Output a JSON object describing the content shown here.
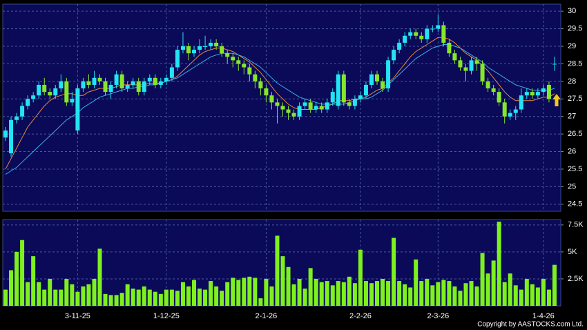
{
  "chart_data": [
    {
      "type": "candlestick",
      "open": [
        26.4,
        25.95,
        26.9,
        27.0,
        27.3,
        27.5,
        27.6,
        27.9,
        27.7,
        27.6,
        27.8,
        28.0,
        27.4,
        26.6,
        27.8,
        28.0,
        27.9,
        28.1,
        28.0,
        27.7,
        27.9,
        28.2,
        27.8,
        27.9,
        28.0,
        27.7,
        28.0,
        28.1,
        27.9,
        28.0,
        28.1,
        28.4,
        28.9,
        29.0,
        28.8,
        28.9,
        29.0,
        29.0,
        29.1,
        29.0,
        28.8,
        28.7,
        28.6,
        28.5,
        28.4,
        28.2,
        28.0,
        27.8,
        27.6,
        27.4,
        27.3,
        27.2,
        27.1,
        27.0,
        27.3,
        27.4,
        27.2,
        27.3,
        27.2,
        27.4,
        27.3,
        28.2,
        27.4,
        27.3,
        27.5,
        27.6,
        27.9,
        28.2,
        28.0,
        27.8,
        28.6,
        28.9,
        29.1,
        29.3,
        29.4,
        29.3,
        29.2,
        29.5,
        29.5,
        29.6,
        29.1,
        28.8,
        28.6,
        28.4,
        28.3,
        28.6,
        28.5,
        28.0,
        27.8,
        27.7,
        27.4,
        27.0,
        27.1,
        27.2,
        27.6,
        27.7,
        27.6,
        27.7,
        27.9,
        28.5
      ],
      "high": [
        26.7,
        27.0,
        27.1,
        27.4,
        27.6,
        27.7,
        28.0,
        28.1,
        27.8,
        27.9,
        28.2,
        28.1,
        27.7,
        27.9,
        28.1,
        28.2,
        28.3,
        28.2,
        28.1,
        28.0,
        28.3,
        28.3,
        28.0,
        28.1,
        28.1,
        28.1,
        28.2,
        28.2,
        28.1,
        28.2,
        28.5,
        29.0,
        29.4,
        29.1,
        29.0,
        29.2,
        29.3,
        29.2,
        29.2,
        29.1,
        28.9,
        28.8,
        28.7,
        28.6,
        28.5,
        28.3,
        28.1,
        27.9,
        27.7,
        27.5,
        27.4,
        27.3,
        27.2,
        27.4,
        27.5,
        27.5,
        27.4,
        27.4,
        27.5,
        27.8,
        28.3,
        28.3,
        27.5,
        27.6,
        27.7,
        28.0,
        28.3,
        28.3,
        28.1,
        28.7,
        29.0,
        29.2,
        29.4,
        29.5,
        29.5,
        29.4,
        29.6,
        29.6,
        29.9,
        29.7,
        29.2,
        28.9,
        28.7,
        28.5,
        28.7,
        28.7,
        28.6,
        28.1,
        27.9,
        27.8,
        27.5,
        27.2,
        27.3,
        27.8,
        27.8,
        27.8,
        27.8,
        27.9,
        28.0,
        28.7
      ],
      "low": [
        26.3,
        25.85,
        26.8,
        26.9,
        27.2,
        27.4,
        27.5,
        27.6,
        27.5,
        27.5,
        27.7,
        27.3,
        27.3,
        26.5,
        27.7,
        27.8,
        27.8,
        27.9,
        27.6,
        27.5,
        27.8,
        27.7,
        27.7,
        27.8,
        27.6,
        27.6,
        27.9,
        27.8,
        27.8,
        27.9,
        28.0,
        28.3,
        28.8,
        28.6,
        28.7,
        28.8,
        28.9,
        28.9,
        28.9,
        28.7,
        28.5,
        28.4,
        28.3,
        28.2,
        28.0,
        27.8,
        27.6,
        27.4,
        27.2,
        26.8,
        27.0,
        26.9,
        26.9,
        26.9,
        27.2,
        27.1,
        27.1,
        27.1,
        27.1,
        27.3,
        27.2,
        27.3,
        27.2,
        27.2,
        27.4,
        27.5,
        27.8,
        27.9,
        27.7,
        27.7,
        28.5,
        28.8,
        29.0,
        29.2,
        29.2,
        29.1,
        29.1,
        29.4,
        29.4,
        29.0,
        28.7,
        28.5,
        28.3,
        28.0,
        28.2,
        28.3,
        27.9,
        27.7,
        27.6,
        27.3,
        26.8,
        26.9,
        26.9,
        27.1,
        27.5,
        27.5,
        27.5,
        27.6,
        27.4,
        28.3
      ],
      "close": [
        26.6,
        26.9,
        27.0,
        27.3,
        27.5,
        27.6,
        27.9,
        27.7,
        27.6,
        27.8,
        28.0,
        27.4,
        27.5,
        27.8,
        28.0,
        27.9,
        28.1,
        28.0,
        27.7,
        27.9,
        28.2,
        27.8,
        27.9,
        28.0,
        27.7,
        28.0,
        28.1,
        27.9,
        28.0,
        28.1,
        28.4,
        28.9,
        29.0,
        28.8,
        28.9,
        29.0,
        29.0,
        29.1,
        29.0,
        28.8,
        28.7,
        28.6,
        28.5,
        28.4,
        28.2,
        28.0,
        27.8,
        27.6,
        27.4,
        27.3,
        27.2,
        27.1,
        27.0,
        27.3,
        27.4,
        27.2,
        27.3,
        27.2,
        27.4,
        27.7,
        28.2,
        27.4,
        27.3,
        27.5,
        27.6,
        27.9,
        28.2,
        28.0,
        27.8,
        28.6,
        28.9,
        29.1,
        29.3,
        29.4,
        29.3,
        29.2,
        29.5,
        29.5,
        29.6,
        29.1,
        28.8,
        28.6,
        28.4,
        28.3,
        28.6,
        28.5,
        28.0,
        27.8,
        27.7,
        27.4,
        27.0,
        27.1,
        27.2,
        27.6,
        27.7,
        27.6,
        27.7,
        27.8,
        27.5,
        28.5
      ],
      "up_color": "#22e4f2",
      "down_color": "#86e62a",
      "series": [
        {
          "color": "#e8893c",
          "values": [
            25.5,
            25.8,
            26.1,
            26.4,
            26.7,
            26.9,
            27.1,
            27.3,
            27.45,
            27.55,
            27.6,
            27.65,
            27.65,
            27.6,
            27.6,
            27.7,
            27.75,
            27.8,
            27.8,
            27.8,
            27.85,
            27.9,
            27.9,
            27.9,
            27.9,
            27.9,
            27.95,
            27.95,
            27.95,
            28.0,
            28.05,
            28.15,
            28.3,
            28.45,
            28.6,
            28.75,
            28.85,
            28.9,
            28.95,
            28.95,
            28.9,
            28.85,
            28.75,
            28.65,
            28.55,
            28.4,
            28.25,
            28.05,
            27.85,
            27.65,
            27.5,
            27.35,
            27.25,
            27.2,
            27.2,
            27.2,
            27.2,
            27.25,
            27.3,
            27.35,
            27.45,
            27.45,
            27.45,
            27.5,
            27.5,
            27.55,
            27.65,
            27.75,
            27.8,
            27.95,
            28.1,
            28.3,
            28.5,
            28.7,
            28.85,
            28.95,
            29.05,
            29.15,
            29.25,
            29.25,
            29.2,
            29.1,
            28.95,
            28.8,
            28.7,
            28.6,
            28.45,
            28.3,
            28.1,
            27.9,
            27.7,
            27.55,
            27.45,
            27.45,
            27.45,
            27.45,
            27.5,
            27.55,
            27.55,
            27.65
          ]
        },
        {
          "color": "#3eaee6",
          "values": [
            25.35,
            25.45,
            25.55,
            25.7,
            25.85,
            26.0,
            26.15,
            26.3,
            26.45,
            26.6,
            26.75,
            26.9,
            27.0,
            27.1,
            27.25,
            27.35,
            27.45,
            27.55,
            27.6,
            27.65,
            27.7,
            27.75,
            27.8,
            27.8,
            27.85,
            27.85,
            27.9,
            27.9,
            27.95,
            28.0,
            28.05,
            28.1,
            28.2,
            28.3,
            28.4,
            28.5,
            28.6,
            28.7,
            28.75,
            28.8,
            28.8,
            28.8,
            28.75,
            28.7,
            28.6,
            28.5,
            28.4,
            28.25,
            28.1,
            27.95,
            27.85,
            27.75,
            27.65,
            27.55,
            27.5,
            27.45,
            27.4,
            27.35,
            27.35,
            27.35,
            27.35,
            27.35,
            27.4,
            27.45,
            27.5,
            27.5,
            27.55,
            27.65,
            27.75,
            27.9,
            28.05,
            28.2,
            28.35,
            28.5,
            28.65,
            28.75,
            28.85,
            28.95,
            29.0,
            29.05,
            29.05,
            29.0,
            28.95,
            28.85,
            28.75,
            28.65,
            28.55,
            28.4,
            28.3,
            28.2,
            28.1,
            28.0,
            27.9,
            27.85,
            27.8,
            27.75,
            27.75,
            27.75,
            27.75,
            27.8
          ]
        }
      ],
      "ylim": [
        24.3,
        30.2
      ],
      "yticks": [
        24.5,
        25,
        25.5,
        26,
        26.5,
        27,
        27.5,
        28,
        28.5,
        29,
        29.5,
        30
      ],
      "grid": true
    },
    {
      "type": "bar",
      "categories": [
        null,
        null,
        null,
        null,
        null,
        null,
        null,
        null,
        null,
        null,
        null,
        null,
        null,
        "3-11-25",
        null,
        null,
        null,
        null,
        null,
        null,
        null,
        null,
        null,
        null,
        null,
        null,
        null,
        null,
        null,
        "1-12-25",
        null,
        null,
        null,
        null,
        null,
        null,
        null,
        null,
        null,
        null,
        null,
        null,
        null,
        null,
        null,
        null,
        null,
        "2-1-26",
        null,
        null,
        null,
        null,
        null,
        null,
        null,
        null,
        null,
        null,
        null,
        null,
        null,
        null,
        null,
        null,
        "2-2-26",
        null,
        null,
        null,
        null,
        null,
        null,
        null,
        null,
        null,
        null,
        null,
        null,
        null,
        "2-3-26",
        null,
        null,
        null,
        null,
        null,
        null,
        null,
        null,
        null,
        null,
        null,
        null,
        null,
        null,
        null,
        null,
        null,
        null,
        "1-4-26",
        null,
        null
      ],
      "values": [
        1500,
        3300,
        5000,
        6100,
        2200,
        4600,
        2200,
        1500,
        2500,
        1500,
        1500,
        2500,
        2000,
        1300,
        1800,
        2000,
        2500,
        5300,
        1100,
        1000,
        1000,
        1200,
        2000,
        1600,
        1500,
        1800,
        1500,
        1300,
        1100,
        1500,
        1500,
        1400,
        2200,
        1800,
        2400,
        1600,
        1500,
        2300,
        1800,
        1400,
        2200,
        2600,
        2400,
        2600,
        2700,
        2600,
        700,
        2500,
        1800,
        6500,
        4600,
        3600,
        2000,
        2500,
        1600,
        3500,
        2500,
        2200,
        2300,
        1900,
        2300,
        2200,
        2700,
        2100,
        5200,
        2300,
        2100,
        2300,
        2500,
        2300,
        6300,
        2300,
        2000,
        1700,
        4300,
        2300,
        2500,
        1900,
        2200,
        2400,
        2300,
        1800,
        1400,
        2100,
        2300,
        1800,
        4900,
        3000,
        4200,
        7800,
        2200,
        3000,
        1900,
        1500,
        2500,
        2000,
        1700,
        2500,
        1500,
        3800
      ],
      "color": "#7ef01e",
      "ylim": [
        0,
        8000
      ],
      "yticks": [
        {
          "value": 2500,
          "label": "2.5K"
        },
        {
          "value": 5000,
          "label": "5K"
        },
        {
          "value": 7500,
          "label": "7.5K"
        }
      ],
      "grid": true
    }
  ],
  "copyright": "Copyright by AASTOCKS.com Ltd."
}
